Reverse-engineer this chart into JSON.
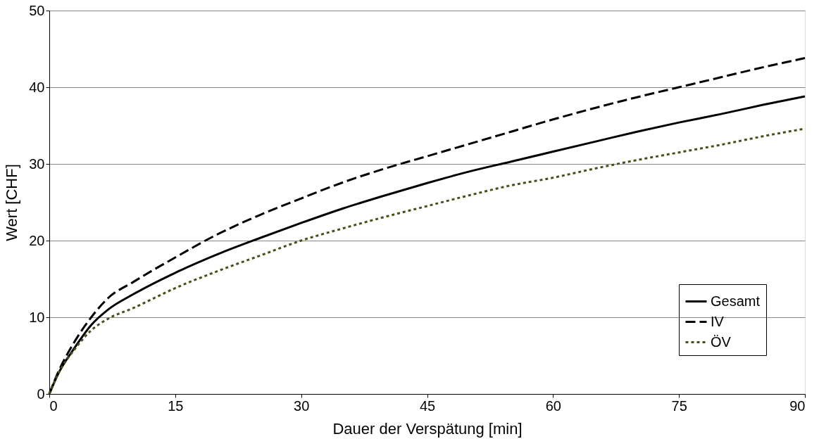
{
  "chart_data": {
    "type": "line",
    "xlabel": "Dauer der Verspätung [min]",
    "ylabel": "Wert [CHF]",
    "xlim": [
      0,
      90
    ],
    "xticks": [
      0,
      15,
      30,
      45,
      60,
      75,
      90
    ],
    "ylim": [
      0,
      50
    ],
    "yticks": [
      0,
      10,
      20,
      30,
      40,
      50
    ],
    "grid": "y",
    "legend": "bottom right",
    "marker": "none",
    "x": [
      0,
      1,
      3,
      5,
      7,
      10,
      15,
      20,
      25,
      30,
      35,
      40,
      45,
      50,
      55,
      60,
      65,
      70,
      75,
      80,
      85,
      90
    ],
    "series": [
      {
        "name": "Gesamt",
        "color": "#000000",
        "line_style": "solid",
        "values": [
          0,
          2.5,
          6,
          9,
          11,
          13,
          15.8,
          18.2,
          20.3,
          22.3,
          24.2,
          25.9,
          27.5,
          29,
          30.3,
          31.6,
          32.9,
          34.2,
          35.4,
          36.5,
          37.7,
          38.8
        ]
      },
      {
        "name": "IV",
        "color": "#000000",
        "line_style": "dashed",
        "values": [
          0,
          2.7,
          6.8,
          10,
          12.5,
          14.6,
          17.8,
          20.8,
          23.3,
          25.5,
          27.6,
          29.4,
          31,
          32.6,
          34.2,
          35.8,
          37.3,
          38.7,
          40,
          41.3,
          42.6,
          43.8
        ]
      },
      {
        "name": "ÖV",
        "color": "#4d4d1a",
        "line_style": "dotted",
        "values": [
          0,
          2.5,
          5.8,
          8.3,
          9.8,
          11.2,
          13.8,
          16,
          18,
          20,
          21.6,
          23.1,
          24.5,
          25.9,
          27.2,
          28.2,
          29.4,
          30.5,
          31.5,
          32.5,
          33.6,
          34.6
        ]
      }
    ]
  }
}
